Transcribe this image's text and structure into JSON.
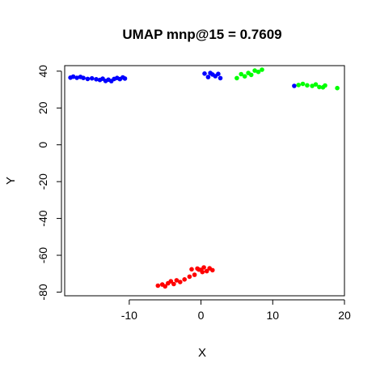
{
  "chart_data": {
    "type": "scatter",
    "title": "UMAP mnp@15 = 0.7609",
    "xlabel": "X",
    "ylabel": "Y",
    "xlim": [
      -19,
      20
    ],
    "ylim": [
      -82,
      43
    ],
    "xticks": [
      -10,
      0,
      10,
      20
    ],
    "xtick_labels": [
      "-10",
      "0",
      "10",
      "20"
    ],
    "yticks": [
      -80,
      -60,
      -40,
      -20,
      0,
      20,
      40
    ],
    "ytick_labels": [
      "-80",
      "-60",
      "-40",
      "-20",
      "0",
      "20",
      "40"
    ],
    "grid": false,
    "legend": "none",
    "series": [
      {
        "color": "#0000ff",
        "points": [
          [
            -18.2,
            36.5
          ],
          [
            -17.8,
            37.0
          ],
          [
            -17.3,
            36.4
          ],
          [
            -16.8,
            36.9
          ],
          [
            -16.4,
            36.3
          ],
          [
            -15.8,
            35.8
          ],
          [
            -15.2,
            36.1
          ],
          [
            -14.6,
            35.6
          ],
          [
            -14.1,
            35.2
          ],
          [
            -13.7,
            35.9
          ],
          [
            -13.3,
            34.7
          ],
          [
            -12.9,
            35.4
          ],
          [
            -12.5,
            34.6
          ],
          [
            -12.1,
            35.8
          ],
          [
            -11.7,
            36.3
          ],
          [
            -11.3,
            35.7
          ],
          [
            -10.9,
            36.6
          ],
          [
            -10.6,
            36.0
          ],
          [
            0.5,
            38.7
          ],
          [
            1.0,
            36.8
          ],
          [
            1.6,
            38.2
          ],
          [
            2.0,
            37.3
          ],
          [
            2.4,
            38.5
          ],
          [
            2.7,
            36.2
          ],
          [
            1.3,
            39.0
          ],
          [
            13.0,
            32.0
          ]
        ]
      },
      {
        "color": "#00ff00",
        "points": [
          [
            5.0,
            36.2
          ],
          [
            5.6,
            38.4
          ],
          [
            6.1,
            37.2
          ],
          [
            6.6,
            39.0
          ],
          [
            7.0,
            38.0
          ],
          [
            7.5,
            40.3
          ],
          [
            8.0,
            39.6
          ],
          [
            8.5,
            40.8
          ],
          [
            13.6,
            32.5
          ],
          [
            14.2,
            33.1
          ],
          [
            14.8,
            32.3
          ],
          [
            15.5,
            32.0
          ],
          [
            16.0,
            32.8
          ],
          [
            16.5,
            31.4
          ],
          [
            17.0,
            31.2
          ],
          [
            17.3,
            32.2
          ],
          [
            19.0,
            30.8
          ]
        ]
      },
      {
        "color": "#ff0000",
        "points": [
          [
            -6.0,
            -76.5
          ],
          [
            -5.4,
            -75.9
          ],
          [
            -5.0,
            -76.9
          ],
          [
            -4.6,
            -75.2
          ],
          [
            -4.2,
            -74.1
          ],
          [
            -3.8,
            -75.6
          ],
          [
            -3.4,
            -73.6
          ],
          [
            -2.9,
            -74.5
          ],
          [
            -2.3,
            -73.1
          ],
          [
            -1.6,
            -71.6
          ],
          [
            -0.9,
            -70.6
          ],
          [
            -1.3,
            -67.6
          ],
          [
            -0.5,
            -67.2
          ],
          [
            0.0,
            -67.9
          ],
          [
            0.4,
            -66.6
          ],
          [
            0.8,
            -68.6
          ],
          [
            1.2,
            -67.1
          ],
          [
            1.6,
            -68.1
          ],
          [
            0.2,
            -69.1
          ],
          [
            -0.3,
            -67.8
          ]
        ]
      }
    ]
  }
}
